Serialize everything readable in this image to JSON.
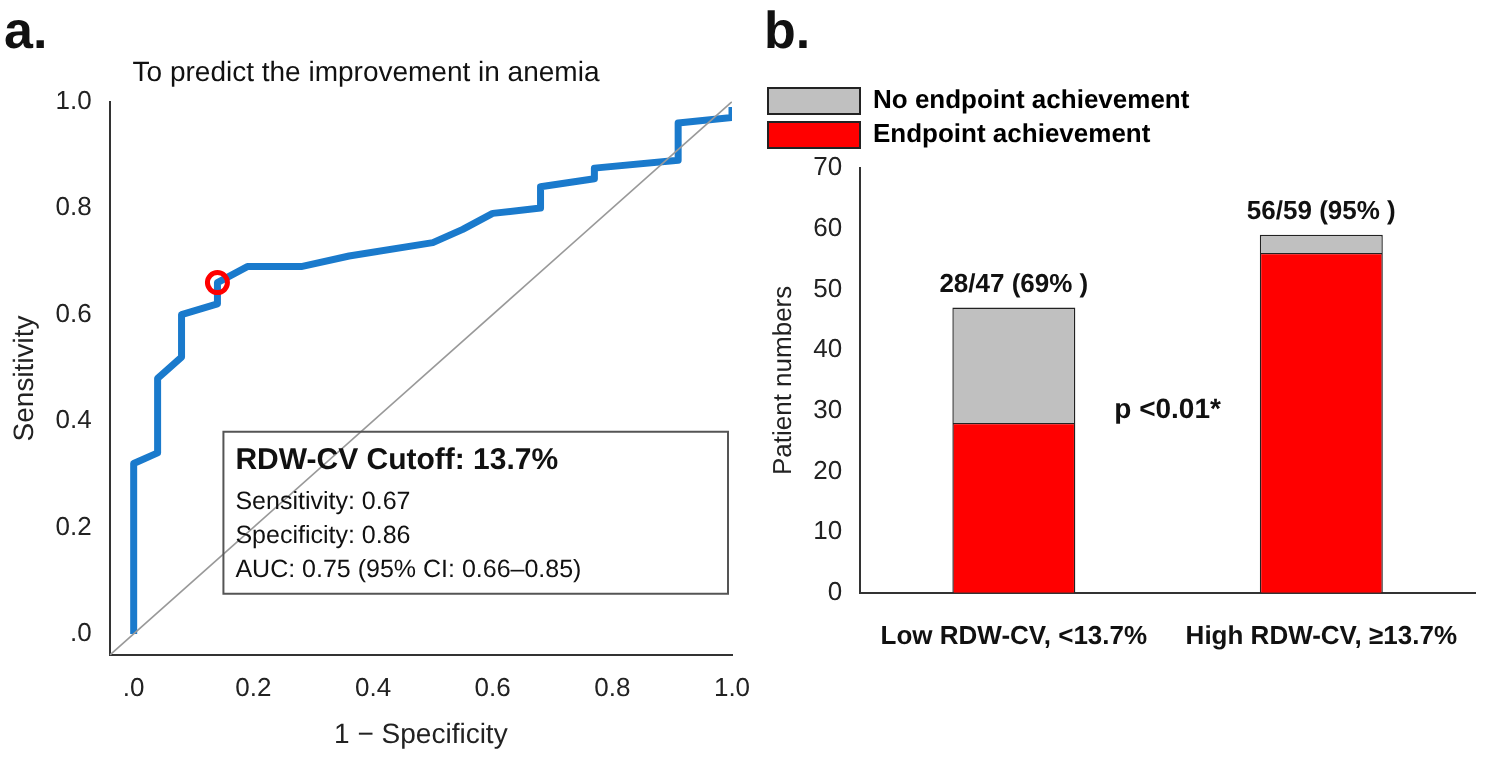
{
  "chart_data": [
    {
      "type": "line",
      "title": "To predict the improvement in anemia",
      "xlabel": "1 − Specificity",
      "ylabel": "Sensitivity",
      "annotations": [
        "a.",
        "RDW-CV Cutoff: 13.7%",
        "Sensitivity: 0.67",
        "Specificity: 0.86",
        "AUC: 0.75 (95% CI: 0.66–0.85)"
      ],
      "series": [
        {
          "type": "line",
          "color": "#999999",
          "x": [
            -0.04,
            1.0
          ],
          "values": [
            -0.04,
            1.0
          ]
        },
        {
          "type": "line",
          "color": "#1a7acc",
          "x": [
            0,
            0,
            0.04,
            0.04,
            0.08,
            0.08,
            0.14,
            0.14,
            0.19,
            0.28,
            0.36,
            0.5,
            0.55,
            0.6,
            0.68,
            0.68,
            0.77,
            0.77,
            0.91,
            0.91,
            1.0,
            1.0
          ],
          "values": [
            0,
            0.32,
            0.34,
            0.48,
            0.52,
            0.6,
            0.62,
            0.66,
            0.69,
            0.69,
            0.71,
            0.735,
            0.76,
            0.79,
            0.8,
            0.84,
            0.855,
            0.875,
            0.89,
            0.96,
            0.97,
            0.99
          ]
        },
        {
          "type": "scatter",
          "color": "#ff0000",
          "marker": "circle",
          "x": [
            0.14
          ],
          "values": [
            0.66
          ]
        }
      ],
      "xlim": [
        -0.04,
        1.0
      ],
      "xticks": [
        {
          "value": 0,
          "label": ".0"
        },
        0.2,
        0.4,
        0.6,
        0.8,
        {
          "value": 1,
          "label": "1.0"
        }
      ],
      "ylim": [
        -0.04,
        1.0
      ],
      "yticks": [
        {
          "value": 0,
          "label": ".0"
        },
        0.2,
        0.4,
        0.6,
        0.8,
        {
          "value": 1,
          "label": "1.0"
        }
      ],
      "grid": false,
      "legend": false
    },
    {
      "type": "bar",
      "stacked": true,
      "ylabel": "Patient numbers",
      "categories": [
        "Low RDW-CV, <13.7%",
        "High RDW-CV, ≥13.7%"
      ],
      "series": [
        {
          "name": "Endpoint achievement",
          "color": "#ff0000",
          "values": [
            28,
            56
          ]
        },
        {
          "name": "No endpoint achievement",
          "color": "#c0c0c0",
          "values": [
            19,
            3
          ]
        }
      ],
      "totals": [
        "28/47 (69% )",
        "56/59 (95% )"
      ],
      "annotations": [
        "b.",
        "p <0.01*"
      ],
      "ylim": [
        0,
        70
      ],
      "yticks": [
        0,
        10,
        20,
        30,
        40,
        50,
        60,
        70
      ],
      "grid": false,
      "legend": "top left"
    }
  ]
}
